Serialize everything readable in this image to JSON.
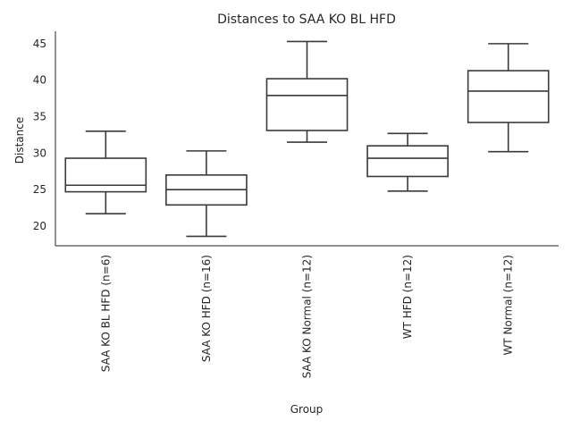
{
  "chart_data": {
    "type": "box",
    "title": "Distances to SAA KO BL HFD",
    "xlabel": "Group",
    "ylabel": "Distance",
    "ylim": [
      17.3,
      46.7
    ],
    "yticks": [
      20,
      25,
      30,
      35,
      40,
      45
    ],
    "groups": [
      {
        "label": "SAA KO BL HFD (n=6)",
        "whisker_low": 21.7,
        "q1": 24.7,
        "median": 25.6,
        "q3": 29.3,
        "whisker_high": 33.0
      },
      {
        "label": "SAA KO HFD (n=16)",
        "whisker_low": 18.6,
        "q1": 22.9,
        "median": 25.0,
        "q3": 27.0,
        "whisker_high": 30.3
      },
      {
        "label": "SAA KO Normal (n=12)",
        "whisker_low": 31.5,
        "q1": 33.1,
        "median": 37.9,
        "q3": 40.2,
        "whisker_high": 45.3
      },
      {
        "label": "WT HFD (n=12)",
        "whisker_low": 24.8,
        "q1": 26.8,
        "median": 29.3,
        "q3": 31.0,
        "whisker_high": 32.7
      },
      {
        "label": "WT Normal (n=12)",
        "whisker_low": 30.2,
        "q1": 34.2,
        "median": 38.5,
        "q3": 41.3,
        "whisker_high": 45.0
      }
    ],
    "grid": false,
    "box_color": "#ffffff",
    "line_color": "#3a3a3a"
  }
}
